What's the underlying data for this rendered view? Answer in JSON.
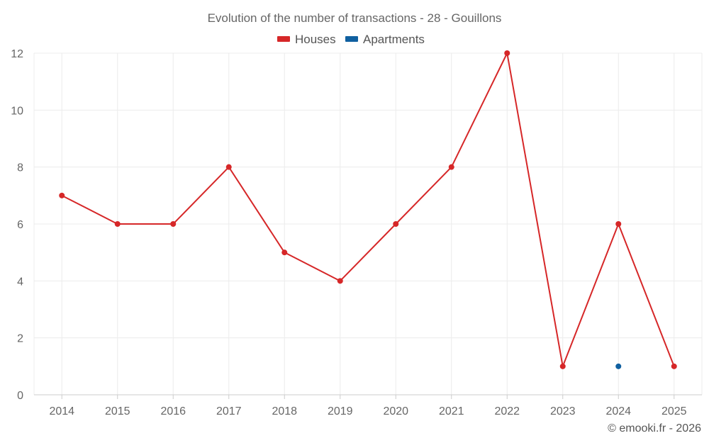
{
  "chart_data": {
    "type": "line",
    "title": "Evolution of the number of transactions - 28 - Gouillons",
    "categories": [
      "2014",
      "2015",
      "2016",
      "2017",
      "2018",
      "2019",
      "2020",
      "2021",
      "2022",
      "2023",
      "2024",
      "2025"
    ],
    "series": [
      {
        "name": "Houses",
        "color": "#d62728",
        "values": [
          7,
          6,
          6,
          8,
          5,
          4,
          6,
          8,
          12,
          1,
          6,
          1
        ]
      },
      {
        "name": "Apartments",
        "color": "#1060a0",
        "values": [
          null,
          null,
          null,
          null,
          null,
          null,
          null,
          null,
          null,
          null,
          1,
          null
        ]
      }
    ],
    "ylim": [
      0,
      12
    ],
    "yticks": [
      0,
      2,
      4,
      6,
      8,
      10,
      12
    ],
    "grid": true,
    "legend_position": "top-center",
    "xlabel": "",
    "ylabel": ""
  },
  "credit": "© emooki.fr - 2026"
}
